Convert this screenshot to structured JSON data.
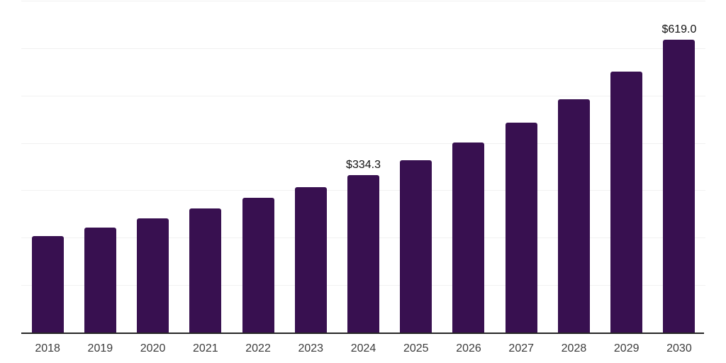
{
  "chart_data": {
    "type": "bar",
    "title": "",
    "xlabel": "",
    "ylabel": "",
    "categories": [
      "2018",
      "2019",
      "2020",
      "2021",
      "2022",
      "2023",
      "2024",
      "2025",
      "2026",
      "2027",
      "2028",
      "2029",
      "2030"
    ],
    "values": [
      205,
      223,
      243,
      263,
      285,
      308,
      334.3,
      365,
      402,
      444,
      494,
      552,
      619
    ],
    "point_labels": {
      "2024": "$334.3",
      "2030": "$619.0"
    },
    "ylim": [
      0,
      700
    ],
    "grid_step": 100,
    "grid": true,
    "legend": false,
    "colors": {
      "bar": "#381050",
      "grid": "#f1f1f1",
      "axis": "#262626",
      "tick_label": "#3c3c3c",
      "data_label": "#111111",
      "background": "#ffffff"
    }
  }
}
